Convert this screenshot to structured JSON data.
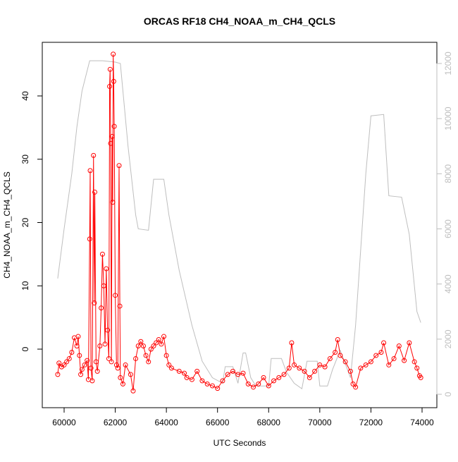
{
  "chart_data": {
    "type": "line",
    "title": "ORCAS RF18 CH4_NOAA_m_CH4_QCLS",
    "xlabel": "UTC Seconds",
    "ylabel": "CH4_NOAA_m_CH4_QCLS",
    "xlim": [
      59146,
      74579
    ],
    "xticks": [
      60000,
      62000,
      64000,
      66000,
      68000,
      70000,
      72000,
      74000
    ],
    "ylim": [
      -9.25,
      48.47
    ],
    "yticks": [
      0,
      10,
      20,
      30,
      40
    ],
    "y2lim": [
      -486,
      12767
    ],
    "y2ticks": [
      0,
      2000,
      4000,
      6000,
      8000,
      10000,
      12000
    ],
    "series": [
      {
        "color": "#ff0000",
        "marker": "circle",
        "x": [
          59750,
          59800,
          59900,
          60000,
          60100,
          60200,
          60300,
          60400,
          60500,
          60550,
          60600,
          60650,
          60700,
          60800,
          60900,
          60950,
          61000,
          61020,
          61050,
          61100,
          61150,
          61180,
          61200,
          61250,
          61300,
          61400,
          61450,
          61500,
          61550,
          61600,
          61650,
          61700,
          61750,
          61780,
          61800,
          61820,
          61850,
          61880,
          61900,
          61920,
          61940,
          61960,
          62000,
          62050,
          62100,
          62150,
          62180,
          62200,
          62300,
          62400,
          62600,
          62700,
          62800,
          62900,
          63000,
          63100,
          63200,
          63300,
          63400,
          63500,
          63600,
          63700,
          63800,
          63900,
          64000,
          64100,
          64200,
          64500,
          64700,
          64800,
          65000,
          65200,
          65400,
          65600,
          65800,
          66000,
          66200,
          66400,
          66600,
          66800,
          67000,
          67200,
          67400,
          67600,
          67800,
          68000,
          68200,
          68400,
          68600,
          68800,
          68900,
          69000,
          69200,
          69400,
          69600,
          69800,
          70000,
          70200,
          70400,
          70600,
          70700,
          70800,
          71000,
          71200,
          71300,
          71400,
          71600,
          71800,
          72000,
          72200,
          72400,
          72500,
          72700,
          72900,
          73100,
          73300,
          73500,
          73700,
          73800,
          73900,
          73950
        ],
        "values": [
          -4,
          -2.2,
          -2.8,
          -2.5,
          -2,
          -1.5,
          -0.5,
          1.8,
          0.5,
          2,
          -1,
          -4,
          -3.2,
          -2.5,
          -1.8,
          -4.8,
          17.4,
          28.2,
          -3,
          -5,
          30.6,
          7.3,
          24.8,
          -2,
          -3.5,
          0.5,
          6.5,
          15,
          10,
          0.8,
          12.7,
          3,
          -1.5,
          41.5,
          44.2,
          32.5,
          -2,
          33.6,
          23.2,
          46.6,
          42.3,
          35.2,
          8.5,
          -2.5,
          -3,
          29,
          6.8,
          -4.5,
          -5.5,
          -2.5,
          -4,
          -6.6,
          -1.5,
          0.5,
          1.2,
          0.5,
          -1,
          -2,
          0,
          0.5,
          1,
          1.5,
          0.8,
          2,
          -1,
          -2.5,
          -3,
          -3.5,
          -3.8,
          -4.5,
          -4.8,
          -3.5,
          -5,
          -5.5,
          -5.8,
          -6.2,
          -5,
          -4,
          -3.5,
          -4,
          -3.8,
          -5.5,
          -6,
          -5.5,
          -4.5,
          -5.8,
          -5,
          -4.5,
          -4,
          -3,
          1,
          -2.5,
          -3,
          -3.5,
          -4.5,
          -3.5,
          -2.5,
          -2.8,
          -1.5,
          -0.5,
          1.5,
          -1,
          -2,
          -3.5,
          -5.5,
          -6,
          -3,
          -2.5,
          -2,
          -1,
          -0.5,
          1,
          -2.5,
          -1.5,
          0.5,
          -1.8,
          1,
          -2,
          -3,
          -4.2,
          -4.5
        ]
      },
      {
        "color": "#bebebe",
        "axis": "y2",
        "x": [
          59750,
          60000,
          60300,
          60500,
          60700,
          61000,
          61500,
          62000,
          62200,
          62500,
          62800,
          62900,
          63300,
          63500,
          63900,
          64100,
          64500,
          65000,
          65400,
          65800,
          66200,
          66300,
          66600,
          66800,
          67000,
          67100,
          67300,
          67500,
          68000,
          68100,
          68500,
          68700,
          69000,
          69300,
          69500,
          69900,
          70000,
          70300,
          70500,
          70800,
          71200,
          71400,
          71800,
          72000,
          72500,
          72700,
          73200,
          73500,
          73800,
          73950
        ],
        "values": [
          4200,
          6000,
          8000,
          9700,
          11000,
          12100,
          12100,
          12050,
          12000,
          9000,
          6500,
          6000,
          5950,
          7800,
          7800,
          6500,
          4500,
          2500,
          1200,
          600,
          400,
          1000,
          1000,
          400,
          1500,
          1500,
          600,
          300,
          300,
          1300,
          1300,
          800,
          400,
          200,
          1200,
          1200,
          300,
          300,
          900,
          1600,
          600,
          2500,
          8000,
          10100,
          10150,
          7200,
          7150,
          5800,
          3000,
          2600
        ]
      }
    ]
  }
}
